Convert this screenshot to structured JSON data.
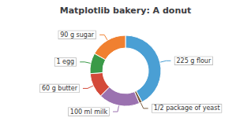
{
  "chart_data": {
    "type": "pie",
    "title": "Matplotlib bakery: A donut",
    "categories": [
      "225 g flour",
      "1/2 package of yeast",
      "100 ml milk",
      "60 g butter",
      "1 egg",
      "90 g sugar"
    ],
    "values": [
      225,
      7,
      100,
      60,
      50,
      90
    ],
    "colors": [
      "#4a9fd4",
      "#7b5c3e",
      "#9b72b0",
      "#d44a3a",
      "#3a9a48",
      "#f08030"
    ]
  }
}
